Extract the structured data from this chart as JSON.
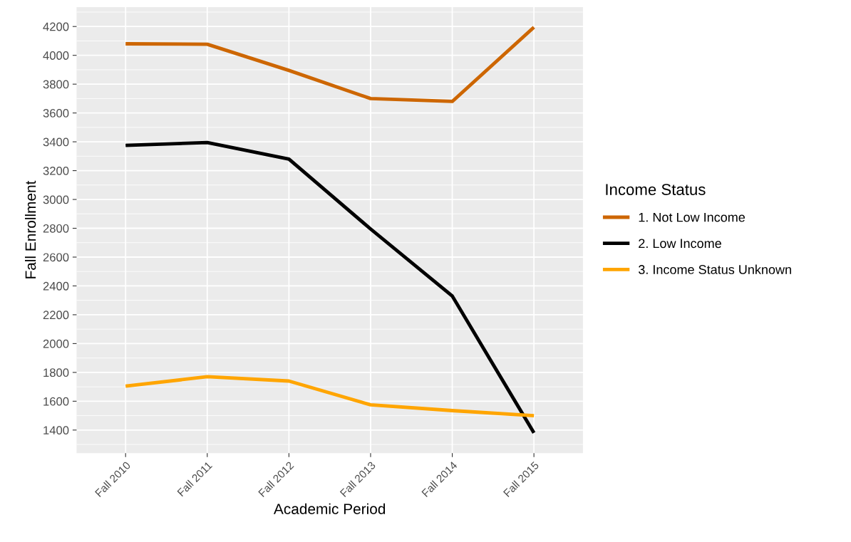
{
  "chart_data": {
    "type": "line",
    "xlabel": "Academic Period",
    "ylabel": "Fall Enrollment",
    "legend_title": "Income Status",
    "categories": [
      "Fall 2010",
      "Fall 2011",
      "Fall 2012",
      "Fall 2013",
      "Fall 2014",
      "Fall 2015"
    ],
    "series": [
      {
        "name": "1. Not Low Income",
        "color": "#cd6600",
        "values": [
          4080,
          4077,
          3895,
          3700,
          3680,
          4195
        ]
      },
      {
        "name": "2. Low Income",
        "color": "#000000",
        "values": [
          3375,
          3395,
          3280,
          2795,
          2330,
          1380
        ]
      },
      {
        "name": "3. Income Status Unknown",
        "color": "#ffa500",
        "values": [
          1705,
          1770,
          1740,
          1575,
          1535,
          1500
        ]
      }
    ],
    "ylim": [
      1240,
      4335
    ],
    "yticks": [
      1400,
      1600,
      1800,
      2000,
      2200,
      2400,
      2600,
      2800,
      3000,
      3200,
      3400,
      3600,
      3800,
      4000,
      4200
    ],
    "grid": true,
    "legend": "right",
    "marker": "none",
    "line_style": "solid"
  }
}
